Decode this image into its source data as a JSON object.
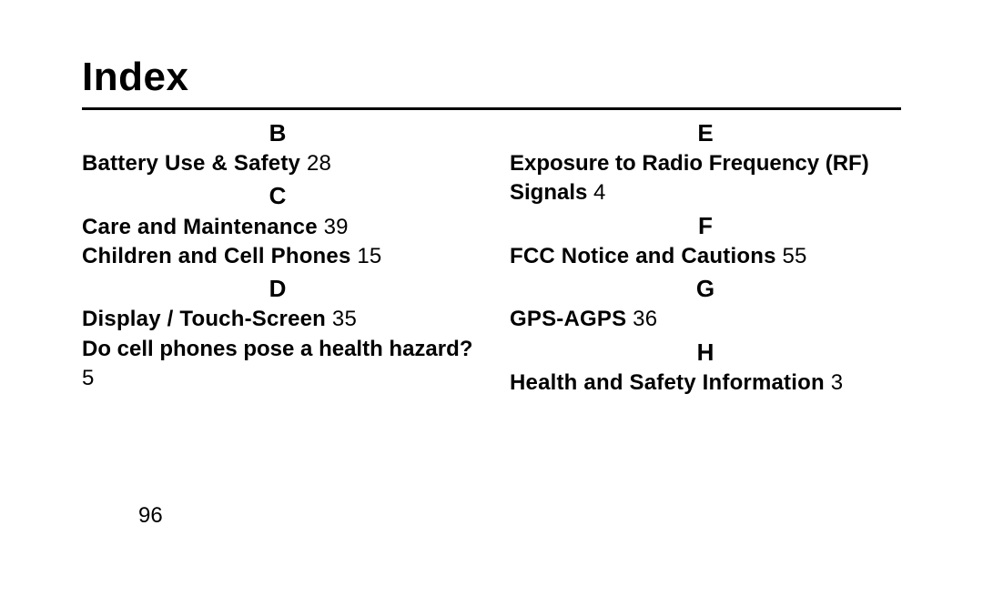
{
  "title": "Index",
  "page_number": "96",
  "left": {
    "B": {
      "letter": "B",
      "e1_label": "Battery Use & Safety",
      "e1_page": " 28"
    },
    "C": {
      "letter": "C",
      "e1_label": "Care and Maintenance",
      "e1_page": " 39",
      "e2_label": "Children and Cell Phones",
      "e2_page": " 15"
    },
    "D": {
      "letter": "D",
      "e1_label": "Display / Touch-Screen",
      "e1_page": " 35",
      "e2_label": "Do cell phones pose a health hazard?",
      "e2_page": "5"
    }
  },
  "right": {
    "E": {
      "letter": "E",
      "e1_label": "Exposure to Radio Frequency (RF) Signals",
      "e1_page": " 4"
    },
    "F": {
      "letter": "F",
      "e1_label": "FCC Notice and Cautions",
      "e1_page": " 55"
    },
    "G": {
      "letter": "G",
      "e1_label": "GPS-AGPS",
      "e1_page": " 36"
    },
    "H": {
      "letter": "H",
      "e1_label": "Health and Safety Information",
      "e1_page": " 3"
    }
  }
}
